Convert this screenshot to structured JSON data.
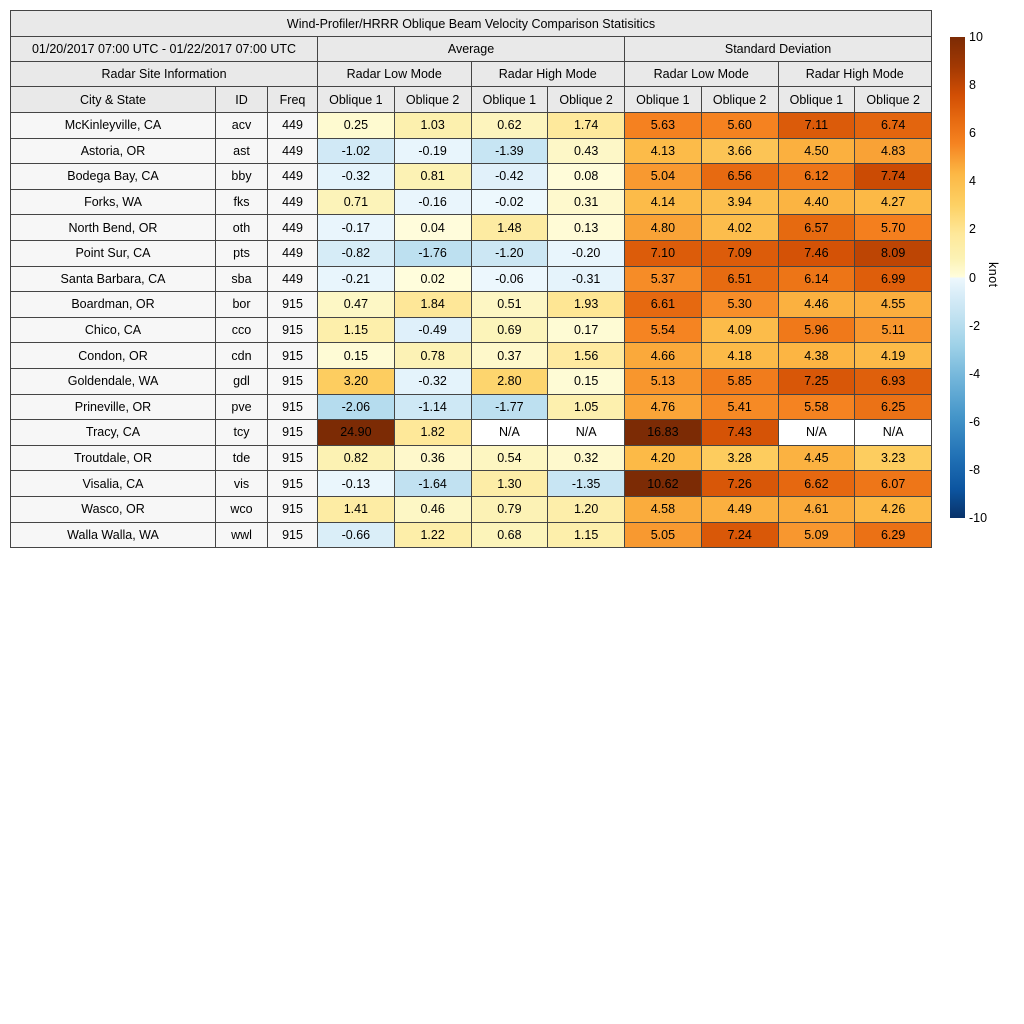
{
  "colors": {
    "header_bg": "#e9e9e9",
    "label_bg": "#f7f7f7",
    "grid": "#454545",
    "na_bg": "#ffffff",
    "background": "#ffffff"
  },
  "chart_data": {
    "type": "heatmap",
    "title": "Wind-Profiler/HRRR Oblique Beam Velocity Comparison Statisitics",
    "period": "01/20/2017 07:00 UTC - 01/22/2017 07:00 UTC",
    "groups": {
      "site_info": "Radar Site Information",
      "average": "Average",
      "stddev": "Standard Deviation",
      "low_mode": "Radar Low Mode",
      "high_mode": "Radar High Mode"
    },
    "columns": {
      "city": "City & State",
      "id": "ID",
      "freq": "Freq",
      "oblique1": "Oblique 1",
      "oblique2": "Oblique 2"
    },
    "na_label": "N/A",
    "colorbar": {
      "label": "knot",
      "min": -10,
      "max": 10,
      "ticks": [
        "10",
        "8",
        "6",
        "4",
        "2",
        "0",
        "-2",
        "-4",
        "-6",
        "-8",
        "-10"
      ]
    },
    "colormap": {
      "neg": [
        [
          -10,
          "#083269"
        ],
        [
          -8.8,
          "#0c55a0"
        ],
        [
          -7.4,
          "#2272b6"
        ],
        [
          -5.8,
          "#4495c9"
        ],
        [
          -4.2,
          "#72b5da"
        ],
        [
          -2.8,
          "#9fd2e8"
        ],
        [
          -1.6,
          "#c2e2f1"
        ],
        [
          -0.7,
          "#d9edf8"
        ],
        [
          0,
          "#eef8fd"
        ]
      ],
      "pos": [
        [
          0,
          "#fffddd"
        ],
        [
          0.8,
          "#fcf2b4"
        ],
        [
          1.8,
          "#fee89a"
        ],
        [
          3.0,
          "#fdd165"
        ],
        [
          4.3,
          "#fcb845"
        ],
        [
          5.6,
          "#f58220"
        ],
        [
          6.6,
          "#e66910"
        ],
        [
          7.6,
          "#d14e04"
        ],
        [
          8.8,
          "#a13803"
        ],
        [
          10,
          "#7c2b05"
        ]
      ]
    },
    "rows": [
      {
        "city": "McKinleyville, CA",
        "id": "acv",
        "freq": "449",
        "values": [
          "0.25",
          "1.03",
          "0.62",
          "1.74",
          "5.63",
          "5.60",
          "7.11",
          "6.74"
        ]
      },
      {
        "city": "Astoria, OR",
        "id": "ast",
        "freq": "449",
        "values": [
          "-1.02",
          "-0.19",
          "-1.39",
          "0.43",
          "4.13",
          "3.66",
          "4.50",
          "4.83"
        ]
      },
      {
        "city": "Bodega Bay, CA",
        "id": "bby",
        "freq": "449",
        "values": [
          "-0.32",
          "0.81",
          "-0.42",
          "0.08",
          "5.04",
          "6.56",
          "6.12",
          "7.74"
        ]
      },
      {
        "city": "Forks, WA",
        "id": "fks",
        "freq": "449",
        "values": [
          "0.71",
          "-0.16",
          "-0.02",
          "0.31",
          "4.14",
          "3.94",
          "4.40",
          "4.27"
        ]
      },
      {
        "city": "North Bend, OR",
        "id": "oth",
        "freq": "449",
        "values": [
          "-0.17",
          "0.04",
          "1.48",
          "0.13",
          "4.80",
          "4.02",
          "6.57",
          "5.70"
        ]
      },
      {
        "city": "Point Sur, CA",
        "id": "pts",
        "freq": "449",
        "values": [
          "-0.82",
          "-1.76",
          "-1.20",
          "-0.20",
          "7.10",
          "7.09",
          "7.46",
          "8.09"
        ]
      },
      {
        "city": "Santa Barbara, CA",
        "id": "sba",
        "freq": "449",
        "values": [
          "-0.21",
          "0.02",
          "-0.06",
          "-0.31",
          "5.37",
          "6.51",
          "6.14",
          "6.99"
        ]
      },
      {
        "city": "Boardman, OR",
        "id": "bor",
        "freq": "915",
        "values": [
          "0.47",
          "1.84",
          "0.51",
          "1.93",
          "6.61",
          "5.30",
          "4.46",
          "4.55"
        ]
      },
      {
        "city": "Chico, CA",
        "id": "cco",
        "freq": "915",
        "values": [
          "1.15",
          "-0.49",
          "0.69",
          "0.17",
          "5.54",
          "4.09",
          "5.96",
          "5.11"
        ]
      },
      {
        "city": "Condon, OR",
        "id": "cdn",
        "freq": "915",
        "values": [
          "0.15",
          "0.78",
          "0.37",
          "1.56",
          "4.66",
          "4.18",
          "4.38",
          "4.19"
        ]
      },
      {
        "city": "Goldendale, WA",
        "id": "gdl",
        "freq": "915",
        "values": [
          "3.20",
          "-0.32",
          "2.80",
          "0.15",
          "5.13",
          "5.85",
          "7.25",
          "6.93"
        ]
      },
      {
        "city": "Prineville, OR",
        "id": "pve",
        "freq": "915",
        "values": [
          "-2.06",
          "-1.14",
          "-1.77",
          "1.05",
          "4.76",
          "5.41",
          "5.58",
          "6.25"
        ]
      },
      {
        "city": "Tracy, CA",
        "id": "tcy",
        "freq": "915",
        "values": [
          "24.90",
          "1.82",
          "N/A",
          "N/A",
          "16.83",
          "7.43",
          "N/A",
          "N/A"
        ]
      },
      {
        "city": "Troutdale, OR",
        "id": "tde",
        "freq": "915",
        "values": [
          "0.82",
          "0.36",
          "0.54",
          "0.32",
          "4.20",
          "3.28",
          "4.45",
          "3.23"
        ]
      },
      {
        "city": "Visalia, CA",
        "id": "vis",
        "freq": "915",
        "values": [
          "-0.13",
          "-1.64",
          "1.30",
          "-1.35",
          "10.62",
          "7.26",
          "6.62",
          "6.07"
        ]
      },
      {
        "city": "Wasco, OR",
        "id": "wco",
        "freq": "915",
        "values": [
          "1.41",
          "0.46",
          "0.79",
          "1.20",
          "4.58",
          "4.49",
          "4.61",
          "4.26"
        ]
      },
      {
        "city": "Walla Walla, WA",
        "id": "wwl",
        "freq": "915",
        "values": [
          "-0.66",
          "1.22",
          "0.68",
          "1.15",
          "5.05",
          "7.24",
          "5.09",
          "6.29"
        ]
      }
    ]
  }
}
